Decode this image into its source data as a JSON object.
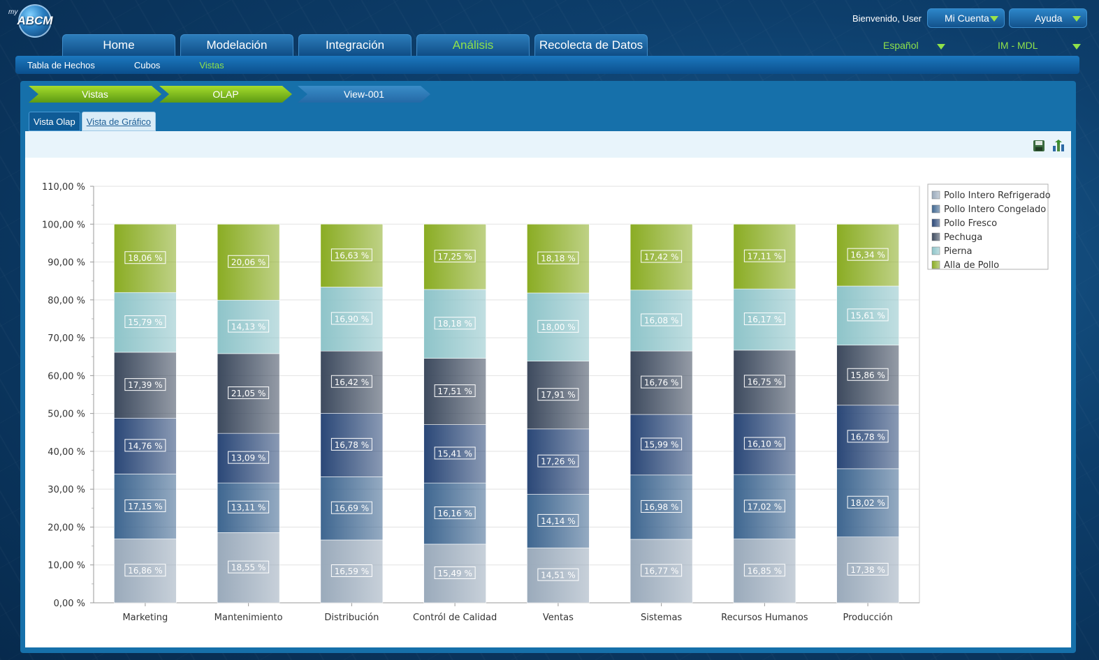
{
  "app": {
    "logo_prefix": "my",
    "logo_text": "ABCM"
  },
  "header": {
    "welcome": "Bienvenido, User",
    "account_label": "Mi Cuenta",
    "help_label": "Ayuda",
    "language": "Español",
    "model": "IM - MDL"
  },
  "main_nav": [
    "Home",
    "Modelación",
    "Integración",
    "Análisis",
    "Recolecta de Datos"
  ],
  "main_nav_active": "Análisis",
  "sub_nav": [
    "Tabla de Hechos",
    "Cubos",
    "Vistas"
  ],
  "sub_nav_active": "Vistas",
  "breadcrumb": [
    "Vistas",
    "OLAP",
    "View-001"
  ],
  "view_tabs": {
    "olap": "Vista Olap",
    "chart": "Vista de Gráfico"
  },
  "icons": {
    "save": "save-icon",
    "export": "chart-export-icon"
  },
  "colors": {
    "accent_green": "#8fe24a",
    "series": [
      "#9aaabb",
      "#3e6690",
      "#2a4777",
      "#3d4a5e",
      "#8ec4c9",
      "#8aac23"
    ]
  },
  "chart_data": {
    "type": "bar",
    "stacked": true,
    "title": "",
    "xlabel": "",
    "ylabel": "",
    "ylim": [
      0,
      110
    ],
    "yticks": [
      "0,00 %",
      "10,00 %",
      "20,00 %",
      "30,00 %",
      "40,00 %",
      "50,00 %",
      "60,00 %",
      "70,00 %",
      "80,00 %",
      "90,00 %",
      "100,00 %",
      "110,00 %"
    ],
    "legend_position": "top-right",
    "categories": [
      "Marketing",
      "Mantenimiento",
      "Distribución",
      "Contról de Calidad",
      "Ventas",
      "Sistemas",
      "Recursos Humanos",
      "Producción"
    ],
    "series": [
      {
        "name": "Pollo Intero Refrigerado",
        "values": [
          16.86,
          18.55,
          16.59,
          15.49,
          14.51,
          16.77,
          16.85,
          17.38
        ],
        "labels": [
          "16,86 %",
          "18,55 %",
          "16,59 %",
          "15,49 %",
          "14,51 %",
          "16,77 %",
          "16,85 %",
          "17,38 %"
        ]
      },
      {
        "name": "Pollo Intero Congelado",
        "values": [
          17.15,
          13.11,
          16.69,
          16.16,
          14.14,
          16.98,
          17.02,
          18.02
        ],
        "labels": [
          "17,15 %",
          "13,11 %",
          "16,69 %",
          "16,16 %",
          "14,14 %",
          "16,98 %",
          "17,02 %",
          "18,02 %"
        ]
      },
      {
        "name": "Pollo Fresco",
        "values": [
          14.76,
          13.09,
          16.78,
          15.41,
          17.26,
          15.99,
          16.1,
          16.78
        ],
        "labels": [
          "14,76 %",
          "13,09 %",
          "16,78 %",
          "15,41 %",
          "17,26 %",
          "15,99 %",
          "16,10 %",
          "16,78 %"
        ]
      },
      {
        "name": "Pechuga",
        "values": [
          17.39,
          21.05,
          16.42,
          17.51,
          17.91,
          16.76,
          16.75,
          15.86
        ],
        "labels": [
          "17,39 %",
          "21,05 %",
          "16,42 %",
          "17,51 %",
          "17,91 %",
          "16,76 %",
          "16,75 %",
          "15,86 %"
        ]
      },
      {
        "name": "Pierna",
        "values": [
          15.79,
          14.13,
          16.9,
          18.18,
          18.0,
          16.08,
          16.17,
          15.61
        ],
        "labels": [
          "15,79 %",
          "14,13 %",
          "16,90 %",
          "18,18 %",
          "18,00 %",
          "16,08 %",
          "16,17 %",
          "15,61 %"
        ]
      },
      {
        "name": "Alla de Pollo",
        "values": [
          18.06,
          20.06,
          16.63,
          17.25,
          18.18,
          17.42,
          17.11,
          16.34
        ],
        "labels": [
          "18,06 %",
          "20,06 %",
          "16,63 %",
          "17,25 %",
          "18,18 %",
          "17,42 %",
          "17,11 %",
          "16,34 %"
        ]
      }
    ]
  }
}
